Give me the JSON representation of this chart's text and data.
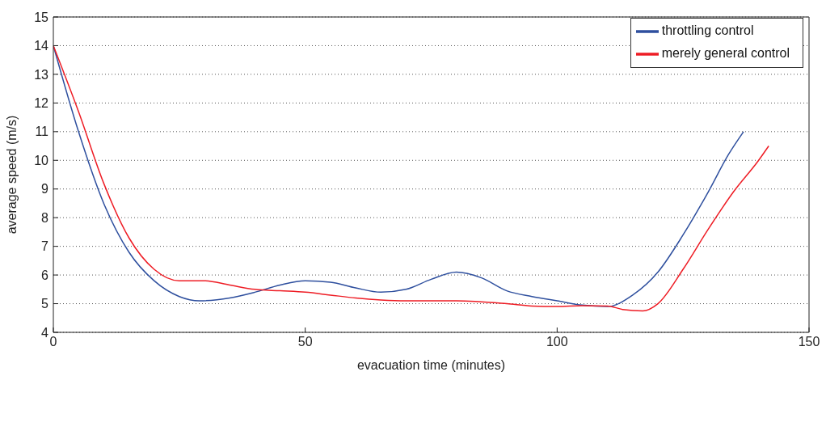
{
  "chart_data": {
    "type": "line",
    "xlabel": "evacuation time (minutes)",
    "ylabel": "average speed (m/s)",
    "xlim": [
      0,
      150
    ],
    "xticks": [
      0,
      50,
      100,
      150
    ],
    "ylim": [
      4,
      15
    ],
    "yticks": [
      4,
      5,
      6,
      7,
      8,
      9,
      10,
      11,
      12,
      13,
      14,
      15
    ],
    "grid": "y",
    "legend": "top right",
    "marker": "none",
    "line_style": "solid",
    "series": [
      {
        "name": "throttling control",
        "color": "#2e4f9e",
        "x": [
          0,
          5,
          10,
          15,
          20,
          25,
          29,
          35,
          40,
          45,
          50,
          55,
          60,
          65,
          70,
          75,
          80,
          85,
          90,
          95,
          100,
          105,
          110,
          115,
          120,
          125,
          130,
          134,
          137
        ],
        "values": [
          14,
          11,
          8.5,
          6.8,
          5.8,
          5.25,
          5.1,
          5.2,
          5.4,
          5.65,
          5.8,
          5.75,
          5.55,
          5.4,
          5.5,
          5.85,
          6.1,
          5.9,
          5.45,
          5.25,
          5.1,
          4.95,
          4.9,
          5.3,
          6.1,
          7.4,
          8.9,
          10.2,
          11
        ]
      },
      {
        "name": "merely general control",
        "color": "#ee1c24",
        "x": [
          0,
          5,
          10,
          15,
          20,
          25,
          30,
          35,
          40,
          45,
          50,
          55,
          60,
          65,
          70,
          80,
          90,
          95,
          100,
          105,
          110,
          113,
          117,
          120,
          125,
          130,
          135,
          140,
          142
        ],
        "values": [
          14,
          11.7,
          9.2,
          7.3,
          6.2,
          5.8,
          5.8,
          5.65,
          5.5,
          5.45,
          5.4,
          5.3,
          5.2,
          5.13,
          5.1,
          5.1,
          5.0,
          4.92,
          4.9,
          4.93,
          4.92,
          4.8,
          4.75,
          5.0,
          6.2,
          7.6,
          8.9,
          10.0,
          10.5
        ]
      }
    ]
  }
}
